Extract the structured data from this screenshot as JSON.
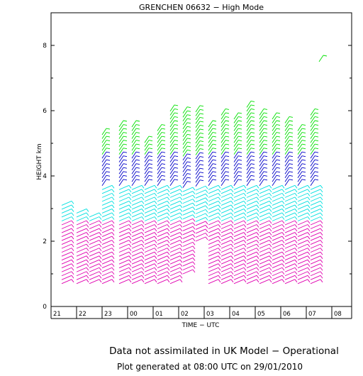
{
  "chart_data": {
    "type": "wind-profile",
    "title": "GRENCHEN 06632 − High Mode",
    "xlabel": "TIME − UTC",
    "ylabel": "HEIGHT km",
    "x_ticks": [
      "21",
      "22",
      "23",
      "00",
      "01",
      "02",
      "03",
      "04",
      "05",
      "06",
      "07",
      "08"
    ],
    "y_ticks": [
      "0",
      "2",
      "4",
      "6",
      "8"
    ],
    "ylim": [
      0,
      9
    ],
    "height_colors": {
      "low": "#e000b0",
      "mid": "#00e0e0",
      "upper": "#0000c8",
      "high": "#00e000"
    },
    "profiles": [
      {
        "time": "21:25",
        "bottom_km": 0.7,
        "top_km": 3.2
      },
      {
        "time": "22:00",
        "bottom_km": 0.7,
        "top_km": 2.9
      },
      {
        "time": "22:30",
        "bottom_km": 0.7,
        "top_km": 2.8
      },
      {
        "time": "23:00",
        "bottom_km": 0.7,
        "top_km": 5.3
      },
      {
        "time": "23:40",
        "bottom_km": 0.7,
        "top_km": 5.6
      },
      {
        "time": "00:10",
        "bottom_km": 0.7,
        "top_km": 5.6
      },
      {
        "time": "00:40",
        "bottom_km": 0.7,
        "top_km": 5.1
      },
      {
        "time": "01:10",
        "bottom_km": 0.7,
        "top_km": 5.4
      },
      {
        "time": "01:40",
        "bottom_km": 0.7,
        "top_km": 6.0
      },
      {
        "time": "02:10",
        "bottom_km": 1.0,
        "top_km": 6.0
      },
      {
        "time": "02:40",
        "bottom_km": 2.0,
        "top_km": 6.0
      },
      {
        "time": "03:10",
        "bottom_km": 0.7,
        "top_km": 5.6
      },
      {
        "time": "03:40",
        "bottom_km": 0.7,
        "top_km": 5.9
      },
      {
        "time": "04:10",
        "bottom_km": 0.7,
        "top_km": 5.8
      },
      {
        "time": "04:40",
        "bottom_km": 0.7,
        "top_km": 6.2
      },
      {
        "time": "05:10",
        "bottom_km": 0.7,
        "top_km": 5.9
      },
      {
        "time": "05:40",
        "bottom_km": 0.7,
        "top_km": 5.8
      },
      {
        "time": "06:10",
        "bottom_km": 0.7,
        "top_km": 5.7
      },
      {
        "time": "06:40",
        "bottom_km": 0.7,
        "top_km": 5.4
      },
      {
        "time": "07:10",
        "bottom_km": 0.7,
        "top_km": 5.9
      },
      {
        "time": "07:30",
        "bottom_km": 7.5,
        "top_km": 7.6
      }
    ]
  },
  "footer": {
    "line1": "Data not assimilated in UK Model − Operational",
    "line2": "Plot generated at 08:00 UTC on 29/01/2010"
  }
}
